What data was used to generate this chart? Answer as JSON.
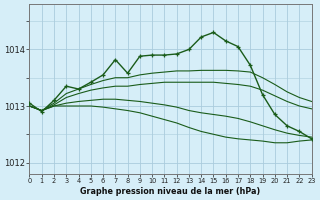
{
  "title": "Graphe pression niveau de la mer (hPa)",
  "background_color": "#d6eef8",
  "grid_color": "#aaccdd",
  "line_color": "#1a5c1a",
  "xlim": [
    0,
    23
  ],
  "ylim": [
    1011.8,
    1014.8
  ],
  "yticks": [
    1012,
    1013,
    1014
  ],
  "xticks": [
    0,
    1,
    2,
    3,
    4,
    5,
    6,
    7,
    8,
    9,
    10,
    11,
    12,
    13,
    14,
    15,
    16,
    17,
    18,
    19,
    20,
    21,
    22,
    23
  ],
  "lines": [
    {
      "x": [
        0,
        1,
        2,
        3,
        4,
        5,
        6,
        7,
        8,
        9,
        10,
        11,
        12,
        13,
        14,
        15,
        16,
        17,
        18,
        19,
        20,
        21,
        22,
        23
      ],
      "y": [
        1013.0,
        1012.92,
        1013.0,
        1013.0,
        1013.0,
        1013.0,
        1012.98,
        1012.95,
        1012.92,
        1012.88,
        1012.82,
        1012.76,
        1012.7,
        1012.62,
        1012.55,
        1012.5,
        1012.45,
        1012.42,
        1012.4,
        1012.38,
        1012.35,
        1012.35,
        1012.38,
        1012.4
      ],
      "marker": false
    },
    {
      "x": [
        0,
        1,
        2,
        3,
        4,
        5,
        6,
        7,
        8,
        9,
        10,
        11,
        12,
        13,
        14,
        15,
        16,
        17,
        18,
        19,
        20,
        21,
        22,
        23
      ],
      "y": [
        1013.0,
        1012.92,
        1013.0,
        1013.05,
        1013.08,
        1013.1,
        1013.12,
        1013.12,
        1013.1,
        1013.08,
        1013.05,
        1013.02,
        1012.98,
        1012.92,
        1012.88,
        1012.85,
        1012.82,
        1012.78,
        1012.72,
        1012.65,
        1012.58,
        1012.52,
        1012.48,
        1012.45
      ],
      "marker": false
    },
    {
      "x": [
        0,
        1,
        2,
        3,
        4,
        5,
        6,
        7,
        8,
        9,
        10,
        11,
        12,
        13,
        14,
        15,
        16,
        17,
        18,
        19,
        20,
        21,
        22,
        23
      ],
      "y": [
        1013.0,
        1012.92,
        1013.02,
        1013.15,
        1013.22,
        1013.28,
        1013.32,
        1013.35,
        1013.35,
        1013.38,
        1013.4,
        1013.42,
        1013.42,
        1013.42,
        1013.42,
        1013.42,
        1013.4,
        1013.38,
        1013.35,
        1013.28,
        1013.18,
        1013.08,
        1013.0,
        1012.95
      ],
      "marker": false
    },
    {
      "x": [
        0,
        1,
        2,
        3,
        4,
        5,
        6,
        7,
        8,
        9,
        10,
        11,
        12,
        13,
        14,
        15,
        16,
        17,
        18,
        19,
        20,
        21,
        22,
        23
      ],
      "y": [
        1013.0,
        1012.92,
        1013.05,
        1013.22,
        1013.3,
        1013.38,
        1013.45,
        1013.5,
        1013.5,
        1013.55,
        1013.58,
        1013.6,
        1013.62,
        1013.62,
        1013.63,
        1013.63,
        1013.63,
        1013.62,
        1013.6,
        1013.5,
        1013.38,
        1013.25,
        1013.15,
        1013.08
      ],
      "marker": false
    },
    {
      "x": [
        0,
        1,
        2,
        3,
        4,
        5,
        6,
        7,
        8,
        9,
        10,
        11,
        12,
        13,
        14,
        15,
        16,
        17,
        18,
        19,
        20,
        21,
        22,
        23
      ],
      "y": [
        1013.05,
        1012.9,
        1013.1,
        1013.35,
        1013.3,
        1013.42,
        1013.55,
        1013.82,
        1013.58,
        1013.88,
        1013.9,
        1013.9,
        1013.92,
        1014.0,
        1014.22,
        1014.3,
        1014.15,
        1014.05,
        1013.72,
        1013.2,
        1012.85,
        1012.65,
        1012.55,
        1012.42
      ],
      "marker": true
    }
  ]
}
